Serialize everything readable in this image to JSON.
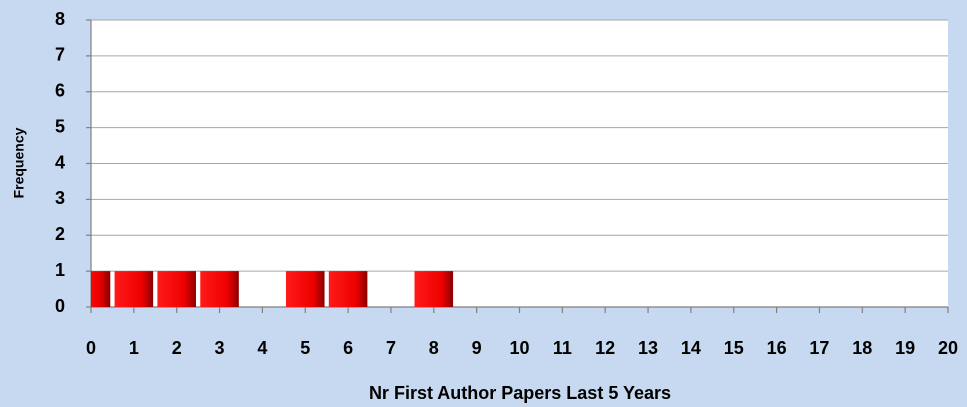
{
  "chart_data": {
    "type": "bar",
    "x": [
      0,
      1,
      2,
      3,
      5,
      6,
      8
    ],
    "values": [
      1,
      1,
      1,
      1,
      1,
      1,
      1
    ],
    "color": "#ff0000",
    "xlabel": "Nr First Author Papers Last 5 Years",
    "ylabel": "Frequency",
    "xlim": [
      0,
      20
    ],
    "xticks": [
      0,
      1,
      2,
      3,
      4,
      5,
      6,
      7,
      8,
      9,
      10,
      11,
      12,
      13,
      14,
      15,
      16,
      17,
      18,
      19,
      20
    ],
    "ylim": [
      0,
      8
    ],
    "yticks": [
      0,
      1,
      2,
      3,
      4,
      5,
      6,
      7,
      8
    ],
    "grid": true
  }
}
